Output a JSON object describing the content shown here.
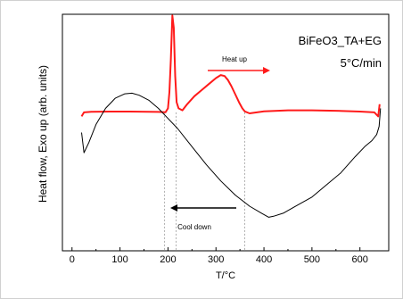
{
  "chart_data": {
    "type": "line",
    "xlabel": "T/°C",
    "ylabel": "Heat flow, Exo up (arb. units)",
    "xlim": [
      -20,
      660
    ],
    "ylim": [
      0,
      1
    ],
    "x_ticks": [
      0,
      100,
      200,
      300,
      400,
      500,
      600
    ],
    "grid": false,
    "annotations": {
      "sample": "BiFeO3_TA+EG",
      "rate": "5°C/min",
      "heat_label": "Heat up",
      "cool_label": "Cool down"
    },
    "reference_lines_x": [
      193,
      217,
      360
    ],
    "series": [
      {
        "name": "Heat up",
        "color": "#ff1a1a",
        "x": [
          20,
          25,
          40,
          80,
          120,
          160,
          180,
          195,
          200,
          203,
          206,
          209,
          212,
          215,
          218,
          222,
          230,
          240,
          255,
          270,
          285,
          300,
          310,
          318,
          325,
          332,
          340,
          348,
          355,
          360,
          370,
          385,
          400,
          450,
          500,
          550,
          600,
          630,
          638,
          641
        ],
        "y": [
          0.6,
          0.62,
          0.623,
          0.624,
          0.624,
          0.623,
          0.622,
          0.621,
          0.64,
          0.72,
          0.88,
          1.1,
          1.04,
          0.8,
          0.67,
          0.64,
          0.63,
          0.66,
          0.7,
          0.73,
          0.76,
          0.79,
          0.805,
          0.8,
          0.78,
          0.75,
          0.71,
          0.67,
          0.64,
          0.625,
          0.615,
          0.62,
          0.625,
          0.63,
          0.63,
          0.628,
          0.624,
          0.62,
          0.6,
          0.66
        ]
      },
      {
        "name": "Cool down",
        "color": "#000000",
        "x": [
          20,
          25,
          35,
          50,
          70,
          90,
          110,
          125,
          140,
          160,
          180,
          200,
          220,
          250,
          280,
          310,
          340,
          370,
          395,
          410,
          420,
          440,
          470,
          500,
          530,
          560,
          590,
          610,
          625,
          635,
          640,
          643
        ],
        "y": [
          0.52,
          0.42,
          0.47,
          0.56,
          0.64,
          0.69,
          0.712,
          0.715,
          0.705,
          0.68,
          0.64,
          0.59,
          0.54,
          0.45,
          0.36,
          0.28,
          0.21,
          0.155,
          0.12,
          0.1,
          0.105,
          0.12,
          0.16,
          0.2,
          0.26,
          0.32,
          0.4,
          0.45,
          0.48,
          0.51,
          0.55,
          0.64
        ]
      }
    ]
  }
}
